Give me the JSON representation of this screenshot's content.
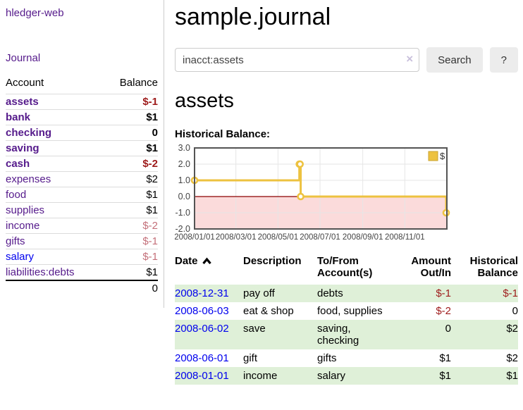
{
  "colors": {
    "link_purple": "#551a8b",
    "link_blue": "#0000ee",
    "negative_dark": "#9e1b1b",
    "negative_light": "#c4707a",
    "row_green": "#dff0d8",
    "chart_line_gold": "#edc240",
    "chart_negative_pink": "#fbdbdb",
    "chart_zero_line": "#8b0000"
  },
  "app_title": "hledger-web",
  "sidebar": {
    "journal_link": "Journal",
    "accounts_table": {
      "account_header": "Account",
      "balance_header": "Balance",
      "rows": [
        {
          "name": "assets",
          "balance": "$-1"
        },
        {
          "name": "bank",
          "balance": "$1"
        },
        {
          "name": "checking",
          "balance": "0"
        },
        {
          "name": "saving",
          "balance": "$1"
        },
        {
          "name": "cash",
          "balance": "$-2"
        },
        {
          "name": "expenses",
          "balance": "$2"
        },
        {
          "name": "food",
          "balance": "$1"
        },
        {
          "name": "supplies",
          "balance": "$1"
        },
        {
          "name": "income",
          "balance": "$-2"
        },
        {
          "name": "gifts",
          "balance": "$-1"
        },
        {
          "name": "salary",
          "balance": "$-1"
        },
        {
          "name": "liabilities:debts",
          "balance": "$1"
        }
      ],
      "total": "0"
    }
  },
  "main": {
    "title": "sample.journal",
    "search": {
      "value": "inacct:assets",
      "clear": "×",
      "search_button": "Search",
      "help_button": "?"
    },
    "section_title": "assets",
    "chart_title": "Historical Balance:"
  },
  "chart_data": {
    "type": "line",
    "step": true,
    "title": "Historical Balance",
    "xlabel": "",
    "ylabel": "",
    "x_range": [
      "2008-01-01",
      "2009-01-01"
    ],
    "y_range": [
      -2,
      3
    ],
    "y_ticks": [
      {
        "value": 3,
        "label": "3.0"
      },
      {
        "value": 2,
        "label": "2.0"
      },
      {
        "value": 1,
        "label": "1.0"
      },
      {
        "value": 0,
        "label": "0.0"
      },
      {
        "value": -1,
        "label": "-1.0"
      },
      {
        "value": -2,
        "label": "-2.0"
      }
    ],
    "x_ticks": [
      {
        "date": "2008-01-01",
        "label": "2008/01/01"
      },
      {
        "date": "2008-03-01",
        "label": "2008/03/01"
      },
      {
        "date": "2008-05-01",
        "label": "2008/05/01"
      },
      {
        "date": "2008-07-01",
        "label": "2008/07/01"
      },
      {
        "date": "2008-09-01",
        "label": "2008/09/01"
      },
      {
        "date": "2008-11-01",
        "label": "2008/11/01"
      }
    ],
    "series": [
      {
        "name": "$",
        "color": "#edc240",
        "points": [
          [
            "2008-01-01",
            1
          ],
          [
            "2008-06-01",
            2
          ],
          [
            "2008-06-02",
            2
          ],
          [
            "2008-06-03",
            0
          ],
          [
            "2008-12-31",
            -1
          ]
        ]
      }
    ],
    "legend_position": "top-right",
    "grid": true,
    "negative_region_color": "#fbdbdb",
    "zero_line_color": "#8b0000",
    "grid_color": "#e6e6e6",
    "border_color": "#545454",
    "tick_label_color": "#444444"
  },
  "register_table": {
    "headers": {
      "date": "Date",
      "description": "Description",
      "tofrom_line1": "To/From",
      "tofrom_line2": "Account(s)",
      "amount_line1": "Amount",
      "amount_line2": "Out/In",
      "balance_line1": "Historical",
      "balance_line2": "Balance"
    },
    "rows": [
      {
        "date": "2008-12-31",
        "description": "pay off",
        "accounts": "debts",
        "amount": "$-1",
        "balance": "$-1"
      },
      {
        "date": "2008-06-03",
        "description": "eat & shop",
        "accounts": "food, supplies",
        "amount": "$-2",
        "balance": "0"
      },
      {
        "date": "2008-06-02",
        "description": "save",
        "accounts": "saving, checking",
        "amount": "0",
        "balance": "$2"
      },
      {
        "date": "2008-06-01",
        "description": "gift",
        "accounts": "gifts",
        "amount": "$1",
        "balance": "$2"
      },
      {
        "date": "2008-01-01",
        "description": "income",
        "accounts": "salary",
        "amount": "$1",
        "balance": "$1"
      }
    ]
  }
}
